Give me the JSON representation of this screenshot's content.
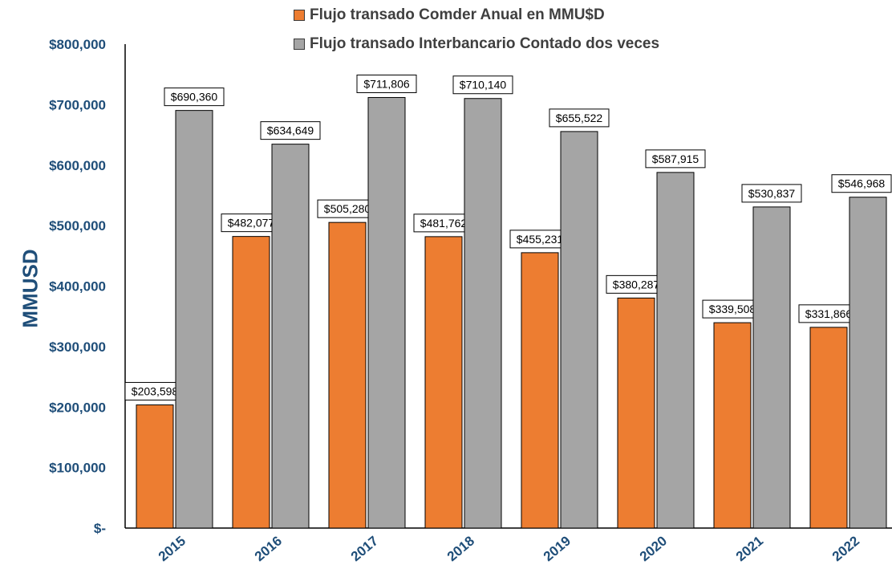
{
  "chart_data": {
    "type": "bar",
    "title": "",
    "xlabel": "",
    "ylabel": "MMUSD",
    "ylim": [
      0,
      800000
    ],
    "y_ticks": [
      {
        "value": 0,
        "label": "$-"
      },
      {
        "value": 100000,
        "label": "$100,000"
      },
      {
        "value": 200000,
        "label": "$200,000"
      },
      {
        "value": 300000,
        "label": "$300,000"
      },
      {
        "value": 400000,
        "label": "$400,000"
      },
      {
        "value": 500000,
        "label": "$500,000"
      },
      {
        "value": 600000,
        "label": "$600,000"
      },
      {
        "value": 700000,
        "label": "$700,000"
      },
      {
        "value": 800000,
        "label": "$800,000"
      }
    ],
    "categories": [
      "2015",
      "2016",
      "2017",
      "2018",
      "2019",
      "2020",
      "2021",
      "2022"
    ],
    "grid": false,
    "legend_placement": "top",
    "series": [
      {
        "name": "Flujo transado Comder Anual en MMU$D",
        "color": "#ed7d31",
        "values": [
          203598,
          482077,
          505280,
          481762,
          455231,
          380287,
          339508,
          331866
        ],
        "labels": [
          "$203,598",
          "$482,077",
          "$505,280",
          "$481,762",
          "$455,231",
          "$380,287",
          "$339,508",
          "$331,866"
        ]
      },
      {
        "name": "Flujo transado Interbancario Contado dos veces",
        "color": "#a5a5a5",
        "values": [
          690360,
          634649,
          711806,
          710140,
          655522,
          587915,
          530837,
          546968
        ],
        "labels": [
          "$690,360",
          "$634,649",
          "$711,806",
          "$710,140",
          "$655,522",
          "$587,915",
          "$530,837",
          "$546,968"
        ]
      }
    ]
  },
  "colors": {
    "axis_text": "#1f4e79",
    "axis_line": "#000000",
    "bar_outline": "#000000"
  }
}
